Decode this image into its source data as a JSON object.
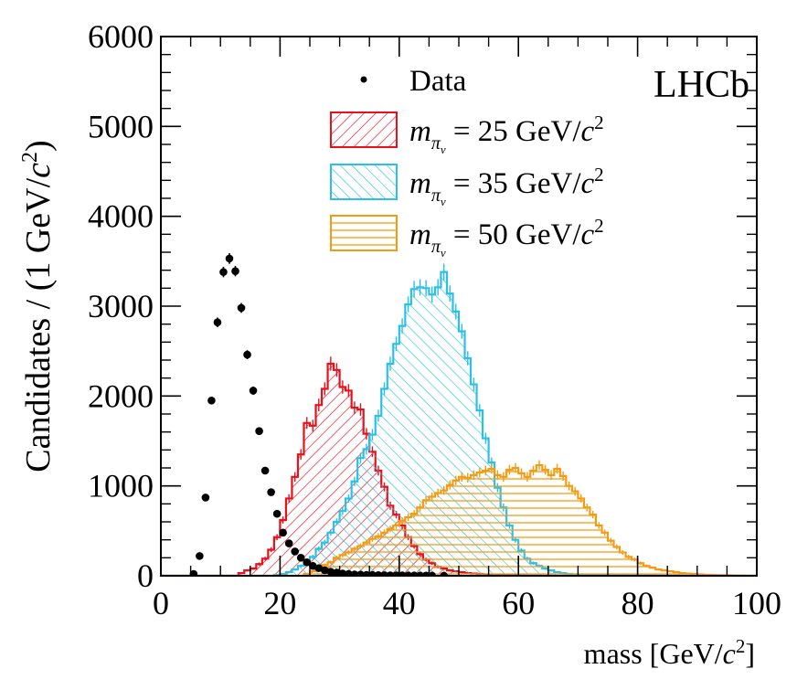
{
  "experiment_label": "LHCb",
  "colors": {
    "data": "#000000",
    "m25": "#e8101a",
    "m35": "#2bc0e8",
    "m50": "#f39c12"
  },
  "chart_data": {
    "type": "histogram",
    "xlabel": "mass [GeV/c²]",
    "ylabel": "Candidates / (1 GeV/c²)",
    "xlim": [
      0,
      100
    ],
    "ylim": [
      0,
      6000
    ],
    "x_ticks": [
      0,
      20,
      40,
      60,
      80,
      100
    ],
    "y_ticks": [
      0,
      1000,
      2000,
      3000,
      4000,
      5000,
      6000
    ],
    "legend_position": "top-right",
    "legend": [
      "Data",
      "m_πv = 25 GeV/c²",
      "m_πv = 35 GeV/c²",
      "m_πv = 50 GeV/c²"
    ],
    "data_series": {
      "name": "Data",
      "x": [
        5.5,
        6.5,
        7.5,
        8.5,
        9.5,
        10.5,
        11.5,
        12.5,
        13.5,
        14.5,
        15.5,
        16.5,
        17.5,
        18.5,
        19.5,
        20.5,
        21.5,
        22.5,
        23.5,
        24.5,
        25.5,
        26.5,
        27.5,
        28.5,
        29.5,
        30.5,
        31.5,
        32.5,
        33.5,
        34.5,
        35.5,
        36.5,
        37.5,
        38.5,
        39.5,
        40.5,
        41.5,
        42.5,
        43.5,
        44.5,
        45.5,
        47.5
      ],
      "y": [
        20,
        220,
        870,
        1950,
        2820,
        3380,
        3530,
        3390,
        2980,
        2460,
        2060,
        1610,
        1170,
        930,
        690,
        480,
        360,
        270,
        200,
        150,
        110,
        85,
        60,
        45,
        35,
        25,
        20,
        15,
        12,
        10,
        8,
        7,
        6,
        5,
        4,
        4,
        3,
        3,
        2,
        2,
        2,
        1
      ]
    },
    "hist_x_range": [
      0,
      100
    ],
    "hist_bin_width": 1,
    "series": [
      {
        "name": "m_πv = 25 GeV/c²",
        "values": [
          0,
          0,
          0,
          0,
          0,
          0,
          0,
          0,
          0,
          0,
          0,
          0,
          0,
          30,
          60,
          80,
          130,
          190,
          290,
          430,
          620,
          860,
          1100,
          1350,
          1700,
          1670,
          1900,
          2080,
          2360,
          2290,
          2100,
          2060,
          1870,
          1850,
          1580,
          1380,
          1170,
          990,
          780,
          680,
          560,
          430,
          330,
          240,
          180,
          140,
          100,
          80,
          60,
          50,
          40,
          30,
          25,
          20,
          15,
          10,
          8,
          6,
          5,
          4,
          3,
          2,
          2,
          1,
          1,
          1,
          0,
          0,
          0,
          0,
          0,
          0,
          0,
          0,
          0,
          0,
          0,
          0,
          0,
          0,
          0,
          0,
          0,
          0,
          0,
          0,
          0,
          0,
          0,
          0,
          0,
          0,
          0,
          0,
          0,
          0,
          0,
          0,
          0,
          0
        ]
      },
      {
        "name": "m_πv = 35 GeV/c²",
        "values": [
          0,
          0,
          0,
          0,
          0,
          0,
          0,
          0,
          0,
          0,
          0,
          0,
          0,
          0,
          0,
          0,
          0,
          0,
          0,
          10,
          20,
          40,
          70,
          110,
          150,
          210,
          300,
          370,
          480,
          600,
          720,
          860,
          1050,
          1310,
          1410,
          1570,
          1780,
          2080,
          2360,
          2580,
          2780,
          3020,
          3190,
          3210,
          3200,
          3130,
          3210,
          3380,
          3140,
          2940,
          2720,
          2420,
          2130,
          1840,
          1530,
          1260,
          980,
          760,
          560,
          400,
          280,
          190,
          140,
          110,
          80,
          60,
          40,
          30,
          20,
          15,
          12,
          10,
          8,
          6,
          5,
          4,
          3,
          3,
          2,
          2,
          1,
          1,
          1,
          0,
          0,
          0,
          0,
          0,
          0,
          0,
          0,
          0,
          0,
          0,
          0,
          0,
          0,
          0,
          0,
          0
        ]
      },
      {
        "name": "m_πv = 50 GeV/c²",
        "values": [
          0,
          0,
          0,
          0,
          0,
          0,
          0,
          0,
          0,
          0,
          0,
          0,
          0,
          0,
          0,
          0,
          0,
          0,
          0,
          0,
          0,
          0,
          0,
          0,
          20,
          50,
          80,
          120,
          150,
          200,
          230,
          260,
          300,
          330,
          370,
          410,
          440,
          480,
          520,
          560,
          610,
          650,
          690,
          760,
          840,
          880,
          920,
          950,
          1010,
          1060,
          1100,
          1090,
          1120,
          1150,
          1170,
          1190,
          1120,
          1100,
          1180,
          1200,
          1140,
          1100,
          1170,
          1230,
          1180,
          1120,
          1190,
          1110,
          1000,
          940,
          860,
          760,
          680,
          560,
          480,
          390,
          320,
          260,
          210,
          180,
          140,
          110,
          90,
          70,
          60,
          50,
          40,
          30,
          25,
          20,
          15,
          12,
          10,
          8,
          6,
          5,
          4,
          3,
          2,
          0
        ]
      }
    ]
  }
}
